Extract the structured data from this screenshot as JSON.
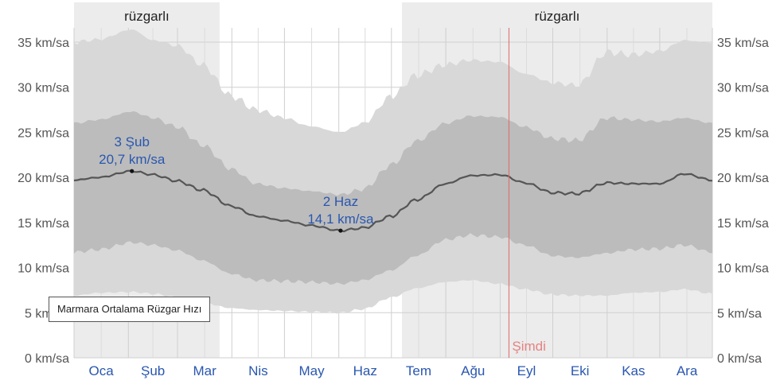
{
  "chart_data": {
    "type": "area",
    "xlabel": "",
    "ylabel": "",
    "ylim": [
      0,
      35
    ],
    "y_unit": "km/sa",
    "y_ticks": [
      "0 km/sa",
      "5 km/sa",
      "10 km/sa",
      "15 km/sa",
      "20 km/sa",
      "25 km/sa",
      "30 km/sa",
      "35 km/sa"
    ],
    "months": [
      "Oca",
      "Şub",
      "Mar",
      "Nis",
      "May",
      "Haz",
      "Tem",
      "Ağu",
      "Eyl",
      "Eki",
      "Kas",
      "Ara"
    ],
    "day_of_year": [
      1,
      15,
      34,
      46,
      60,
      74,
      91,
      105,
      121,
      135,
      153,
      166,
      182,
      196,
      213,
      227,
      244,
      258,
      274,
      288,
      305,
      319,
      335,
      349,
      365
    ],
    "series": [
      {
        "values": [
          19.7,
          20.0,
          20.7,
          20.3,
          19.6,
          18.6,
          16.8,
          15.7,
          15.2,
          14.7,
          14.1,
          14.4,
          15.7,
          17.5,
          19.3,
          20.2,
          20.3,
          19.4,
          18.3,
          18.2,
          19.4,
          19.3,
          19.3,
          20.4,
          19.7
        ]
      },
      {
        "values": [
          11.7,
          12.0,
          12.8,
          12.5,
          11.9,
          10.8,
          9.3,
          8.6,
          8.5,
          8.4,
          8.2,
          8.6,
          9.7,
          11.3,
          13.1,
          13.6,
          13.4,
          12.5,
          11.3,
          11.1,
          11.6,
          12.0,
          12.1,
          12.5,
          11.7
        ]
      },
      {
        "values": [
          26.0,
          26.4,
          27.3,
          26.6,
          25.6,
          23.6,
          20.9,
          19.3,
          18.8,
          18.5,
          18.1,
          18.7,
          21.4,
          24.0,
          26.0,
          26.8,
          26.7,
          25.6,
          24.3,
          24.1,
          26.6,
          26.4,
          26.2,
          26.6,
          26.0
        ]
      },
      {
        "values": [
          6.9,
          7.2,
          7.3,
          7.1,
          6.7,
          6.1,
          5.5,
          5.3,
          5.2,
          5.1,
          5.0,
          5.4,
          6.7,
          7.7,
          8.4,
          8.6,
          8.2,
          7.6,
          7.0,
          6.9,
          6.9,
          7.2,
          7.3,
          7.6,
          7.1
        ]
      },
      {
        "values": [
          35.0,
          35.3,
          36.4,
          35.2,
          34.6,
          32.5,
          29.0,
          27.5,
          26.6,
          25.7,
          25.0,
          26.0,
          29.0,
          31.3,
          32.5,
          33.0,
          32.8,
          31.5,
          30.5,
          30.2,
          33.9,
          33.6,
          34.0,
          35.2,
          34.9
        ]
      }
    ],
    "season_bands": [
      {
        "label": "rüzgarlı",
        "from_day": 1,
        "to_day": 84
      },
      {
        "label": "rüzgarlı",
        "from_day": 188,
        "to_day": 365
      }
    ],
    "annotations": [
      {
        "date": "3 Şub",
        "value": "20,7 km/sa",
        "day": 34,
        "y": 20.7
      },
      {
        "date": "2 Haz",
        "value": "14,1 km/sa",
        "day": 153,
        "y": 14.1
      }
    ],
    "now_marker": {
      "label": "Şimdi",
      "day": 249
    },
    "legend_tooltip": "Marmara Ortalama Rüzgar Hızı",
    "colors": {
      "band_outer": "#d8d8d8",
      "band_inner": "#bcbcbc",
      "season_bg": "#ececec",
      "median_line": "#555555",
      "axis_text": "#555555",
      "month_text": "#2a57b0",
      "now_line": "#e06666"
    }
  }
}
